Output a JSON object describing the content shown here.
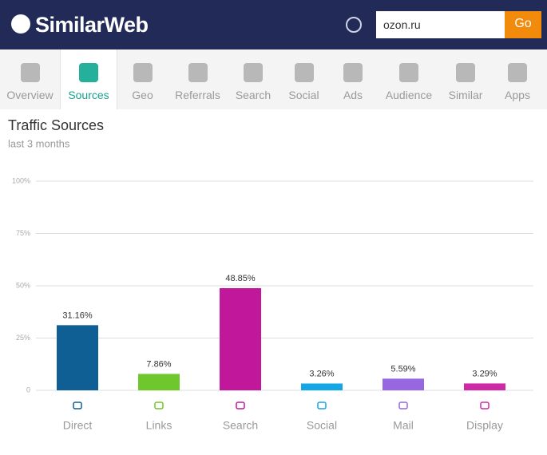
{
  "header": {
    "logo": "SimilarWeb",
    "search_value": "ozon.ru",
    "button": "Go"
  },
  "nav": {
    "tabs": [
      "Overview",
      "Sources",
      "Geo",
      "Referrals",
      "Search",
      "Social",
      "Ads",
      "Audience",
      "Similar",
      "Apps"
    ]
  },
  "chart_data": {
    "type": "bar",
    "title": "Traffic Sources",
    "subtitle": "last 3 months",
    "categories": [
      "Direct",
      "Links",
      "Search",
      "Social",
      "Mail",
      "Display"
    ],
    "values": [
      31.16,
      7.86,
      48.85,
      3.26,
      5.59,
      3.29
    ],
    "value_labels": [
      "31.16%",
      "7.86%",
      "48.85%",
      "3.26%",
      "5.59%",
      "3.29%"
    ],
    "colors": [
      "#0f5f95",
      "#6ec72d",
      "#c1189b",
      "#15a6e6",
      "#9667e0",
      "#cf2aa5"
    ],
    "ylim": [
      0,
      100
    ],
    "yticks": [
      0,
      {
        "value": 25,
        "label": "25%"
      },
      {
        "value": 50,
        "label": "50%"
      },
      {
        "value": 75,
        "label": "75%"
      },
      {
        "value": 100,
        "label": "100%"
      }
    ],
    "grid": true
  }
}
